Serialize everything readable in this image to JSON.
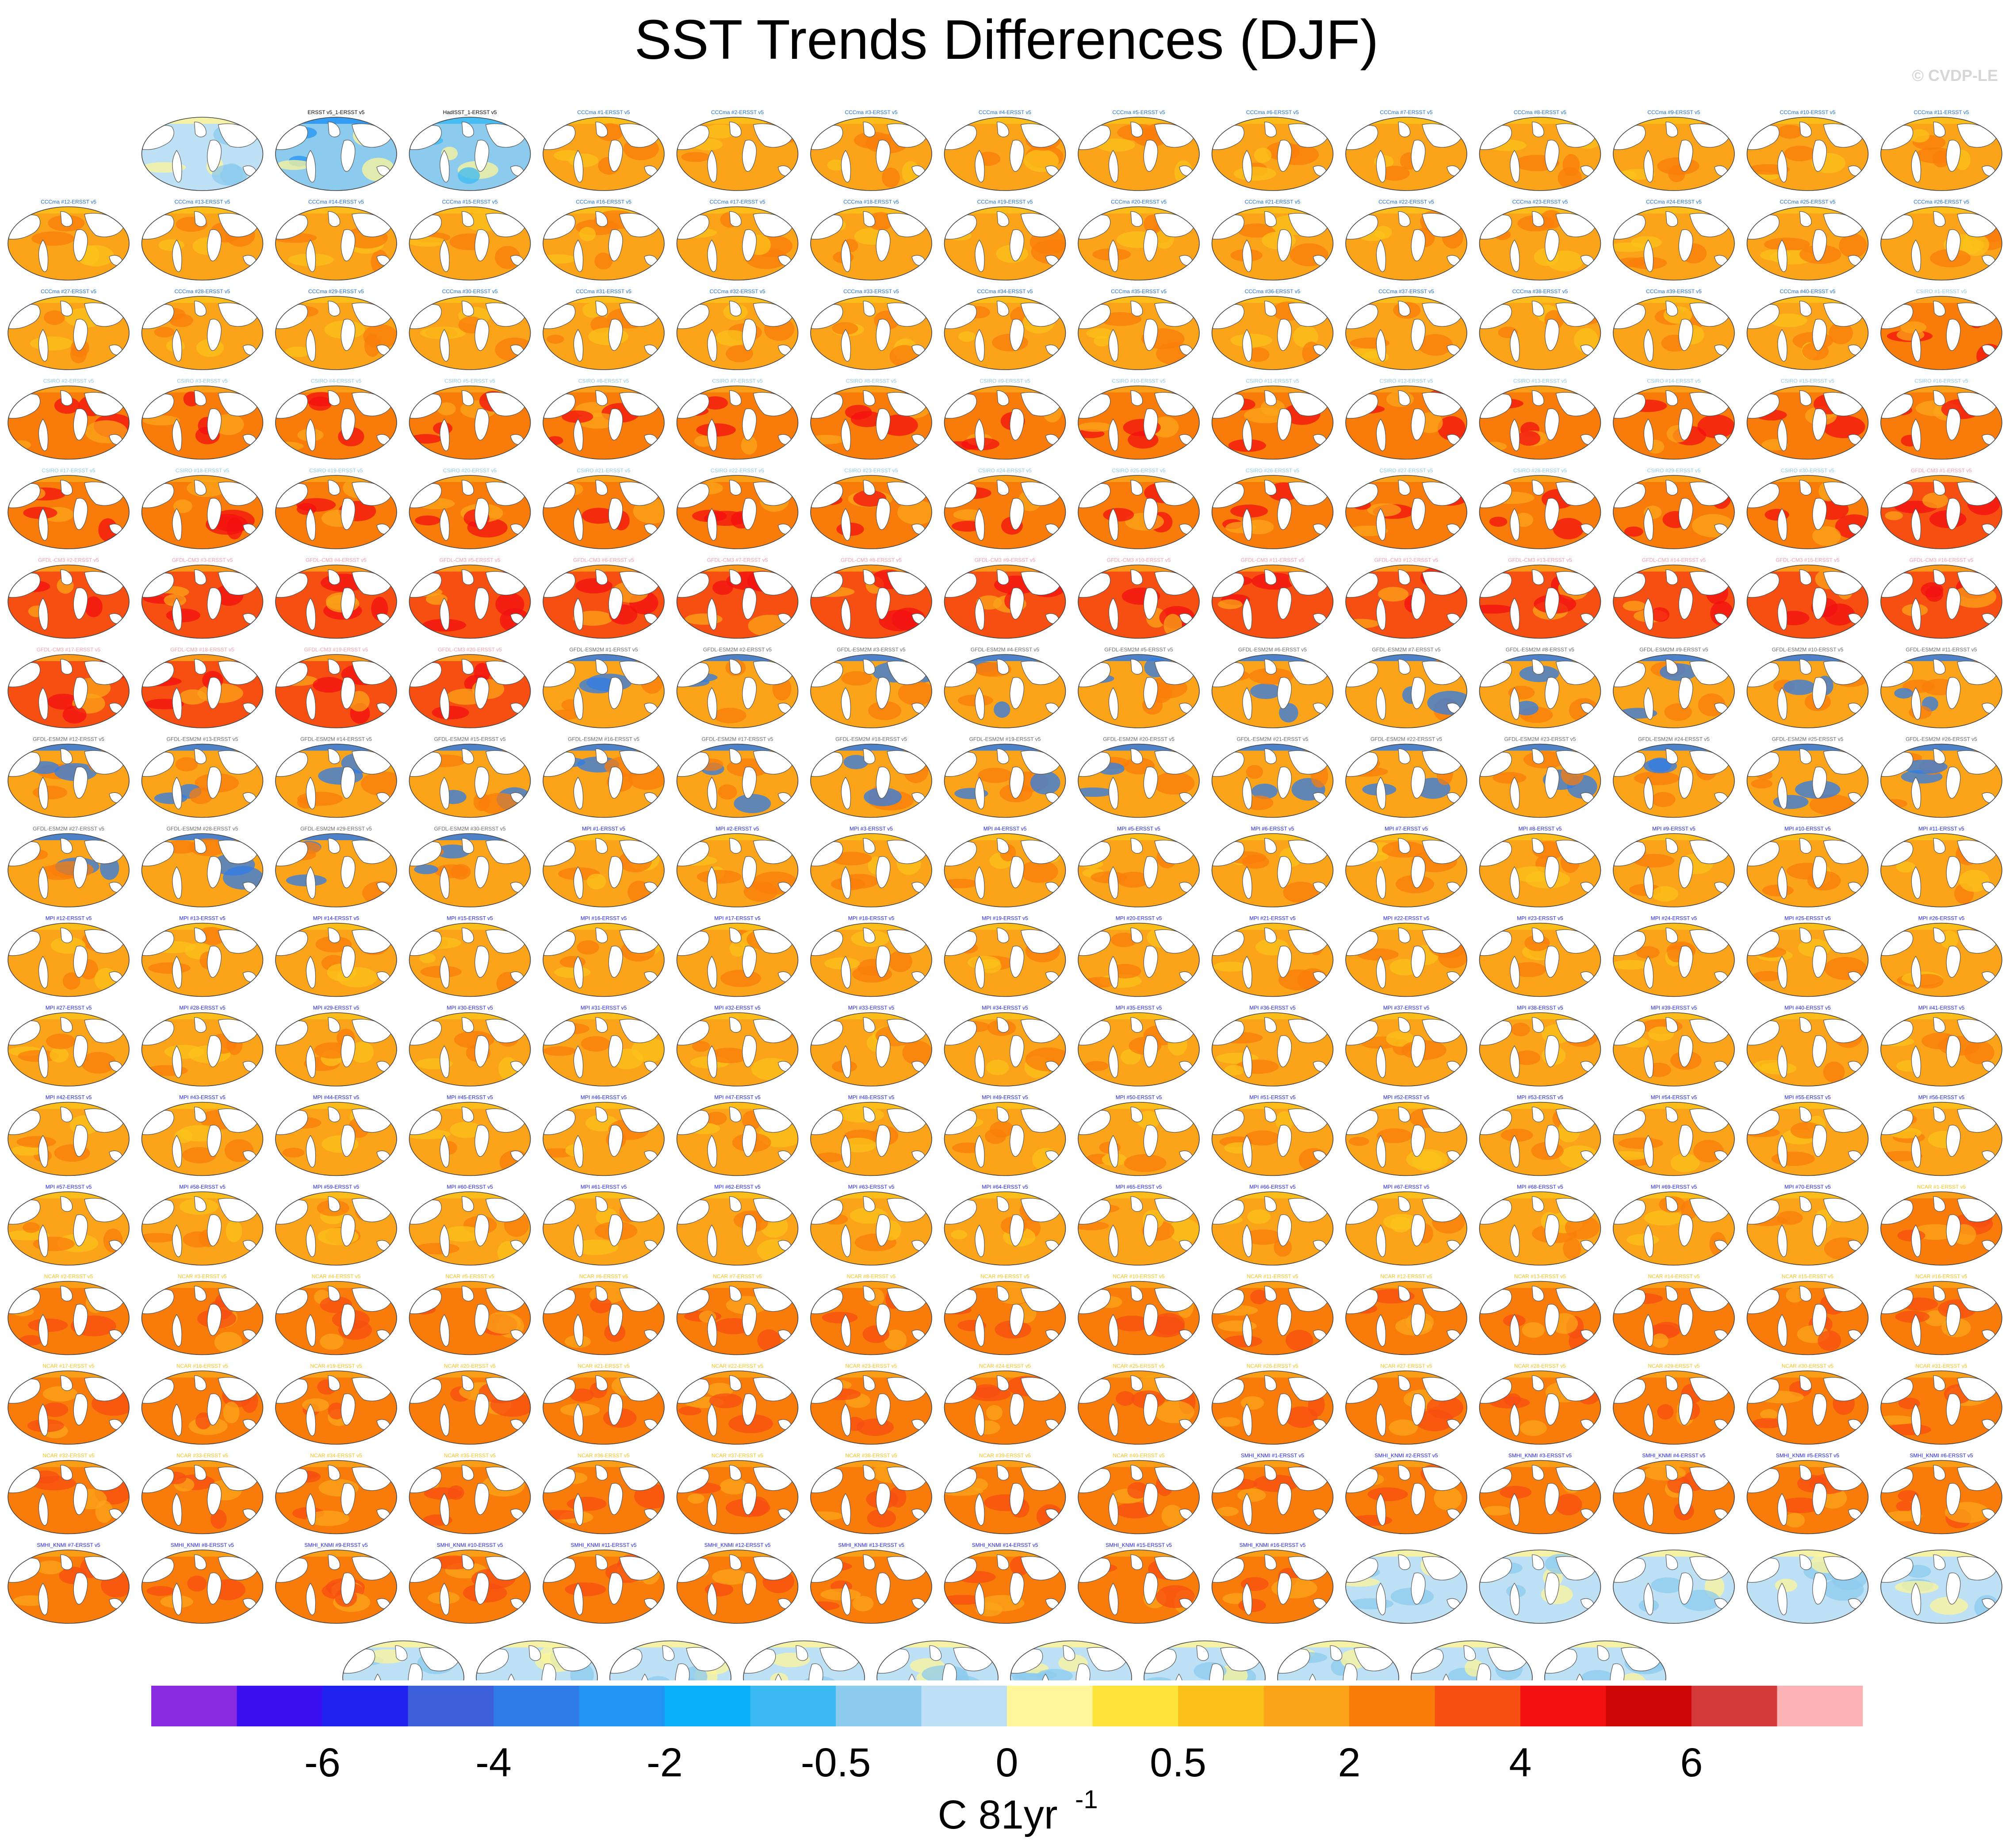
{
  "title": "SST Trends Differences (DJF)",
  "credit": "© CVDP-LE",
  "chart_data": {
    "type": "heatmap",
    "title": "SST Trends Differences (DJF)",
    "description_of_panels": [],
    "colorbar": {
      "colors": [
        "#8a2be2",
        "#3b10f0",
        "#1f22ee",
        "#3d5fdc",
        "#2f7ce8",
        "#2394f2",
        "#0aaffa",
        "#3bbaf2",
        "#8ccbee",
        "#bde0f5",
        "#fff59a",
        "#fde33a",
        "#fbc21b",
        "#fba41a",
        "#f97c0b",
        "#f74e12",
        "#f31010",
        "#cf0707",
        "#d43a3a",
        "#fbb2b4"
      ],
      "tick_labels": [
        "-6",
        "-4",
        "-2",
        "-0.5",
        "0",
        "0.5",
        "2",
        "4",
        "6"
      ],
      "tick_boundaries": [
        2,
        4,
        6,
        8,
        10,
        12,
        14,
        16,
        18
      ],
      "unit_label": "C 81yr",
      "unit_exponent": "-1"
    },
    "panel_labels": [
      "",
      "ERSST v5_1-ERSST v5",
      "HadISST_1-ERSST v5",
      "CCCma #1-ERSST v5",
      "CCCma #2-ERSST v5",
      "CCCma #3-ERSST v5",
      "CCCma #4-ERSST v5",
      "CCCma #5-ERSST v5",
      "CCCma #6-ERSST v5",
      "CCCma #7-ERSST v5",
      "CCCma #8-ERSST v5",
      "CCCma #9-ERSST v5",
      "CCCma #10-ERSST v5",
      "CCCma #11-ERSST v5",
      "CCCma #12-ERSST v5",
      "CCCma #13-ERSST v5",
      "CCCma #14-ERSST v5",
      "CCCma #15-ERSST v5",
      "CCCma #16-ERSST v5",
      "CCCma #17-ERSST v5",
      "CCCma #18-ERSST v5",
      "CCCma #19-ERSST v5",
      "CCCma #20-ERSST v5",
      "CCCma #21-ERSST v5",
      "CCCma #22-ERSST v5",
      "CCCma #23-ERSST v5",
      "CCCma #24-ERSST v5",
      "CCCma #25-ERSST v5",
      "CCCma #26-ERSST v5",
      "CCCma #27-ERSST v5",
      "CCCma #28-ERSST v5",
      "CCCma #29-ERSST v5",
      "CCCma #30-ERSST v5",
      "CCCma #31-ERSST v5",
      "CCCma #32-ERSST v5",
      "CCCma #33-ERSST v5",
      "CCCma #34-ERSST v5",
      "CCCma #35-ERSST v5",
      "CCCma #36-ERSST v5",
      "CCCma #37-ERSST v5",
      "CCCma #38-ERSST v5",
      "CCCma #39-ERSST v5",
      "CCCma #40-ERSST v5",
      "CSIRO #1-ERSST v5",
      "CSIRO #2-ERSST v5",
      "CSIRO #3-ERSST v5",
      "CSIRO #4-ERSST v5",
      "CSIRO #5-ERSST v5",
      "CSIRO #6-ERSST v5",
      "CSIRO #7-ERSST v5",
      "CSIRO #8-ERSST v5",
      "CSIRO #9-ERSST v5",
      "CSIRO #10-ERSST v5",
      "CSIRO #11-ERSST v5",
      "CSIRO #12-ERSST v5",
      "CSIRO #13-ERSST v5",
      "CSIRO #14-ERSST v5",
      "CSIRO #15-ERSST v5",
      "CSIRO #16-ERSST v5",
      "CSIRO #17-ERSST v5",
      "CSIRO #18-ERSST v5",
      "CSIRO #19-ERSST v5",
      "CSIRO #20-ERSST v5",
      "CSIRO #21-ERSST v5",
      "CSIRO #22-ERSST v5",
      "CSIRO #23-ERSST v5",
      "CSIRO #24-ERSST v5",
      "CSIRO #25-ERSST v5",
      "CSIRO #26-ERSST v5",
      "CSIRO #27-ERSST v5",
      "CSIRO #28-ERSST v5",
      "CSIRO #29-ERSST v5",
      "CSIRO #30-ERSST v5",
      "GFDL-CM3 #1-ERSST v5",
      "GFDL-CM3 #2-ERSST v5",
      "GFDL-CM3 #3-ERSST v5",
      "GFDL-CM3 #4-ERSST v5",
      "GFDL-CM3 #5-ERSST v5",
      "GFDL-CM3 #6-ERSST v5",
      "GFDL-CM3 #7-ERSST v5",
      "GFDL-CM3 #8-ERSST v5",
      "GFDL-CM3 #9-ERSST v5",
      "GFDL-CM3 #10-ERSST v5",
      "GFDL-CM3 #11-ERSST v5",
      "GFDL-CM3 #12-ERSST v5",
      "GFDL-CM3 #13-ERSST v5",
      "GFDL-CM3 #14-ERSST v5",
      "GFDL-CM3 #15-ERSST v5",
      "GFDL-CM3 #16-ERSST v5",
      "GFDL-CM3 #17-ERSST v5",
      "GFDL-CM3 #18-ERSST v5",
      "GFDL-CM3 #19-ERSST v5",
      "GFDL-CM3 #20-ERSST v5",
      "GFDL-ESM2M #1-ERSST v5",
      "GFDL-ESM2M #2-ERSST v5",
      "GFDL-ESM2M #3-ERSST v5",
      "GFDL-ESM2M #4-ERSST v5",
      "GFDL-ESM2M #5-ERSST v5",
      "GFDL-ESM2M #6-ERSST v5",
      "GFDL-ESM2M #7-ERSST v5",
      "GFDL-ESM2M #8-ERSST v5",
      "GFDL-ESM2M #9-ERSST v5",
      "GFDL-ESM2M #10-ERSST v5",
      "GFDL-ESM2M #11-ERSST v5",
      "GFDL-ESM2M #12-ERSST v5",
      "GFDL-ESM2M #13-ERSST v5",
      "GFDL-ESM2M #14-ERSST v5",
      "GFDL-ESM2M #15-ERSST v5",
      "GFDL-ESM2M #16-ERSST v5",
      "GFDL-ESM2M #17-ERSST v5",
      "GFDL-ESM2M #18-ERSST v5",
      "GFDL-ESM2M #19-ERSST v5",
      "GFDL-ESM2M #20-ERSST v5",
      "GFDL-ESM2M #21-ERSST v5",
      "GFDL-ESM2M #22-ERSST v5",
      "GFDL-ESM2M #23-ERSST v5",
      "GFDL-ESM2M #24-ERSST v5",
      "GFDL-ESM2M #25-ERSST v5",
      "GFDL-ESM2M #26-ERSST v5",
      "GFDL-ESM2M #27-ERSST v5",
      "GFDL-ESM2M #28-ERSST v5",
      "GFDL-ESM2M #29-ERSST v5",
      "GFDL-ESM2M #30-ERSST v5",
      "MPI #1-ERSST v5",
      "MPI #2-ERSST v5",
      "MPI #3-ERSST v5",
      "MPI #4-ERSST v5",
      "MPI #5-ERSST v5",
      "MPI #6-ERSST v5",
      "MPI #7-ERSST v5",
      "MPI #8-ERSST v5",
      "MPI #9-ERSST v5",
      "MPI #10-ERSST v5",
      "MPI #11-ERSST v5",
      "MPI #12-ERSST v5",
      "MPI #13-ERSST v5",
      "MPI #14-ERSST v5",
      "MPI #15-ERSST v5",
      "MPI #16-ERSST v5",
      "MPI #17-ERSST v5",
      "MPI #18-ERSST v5",
      "MPI #19-ERSST v5",
      "MPI #20-ERSST v5",
      "MPI #21-ERSST v5",
      "MPI #22-ERSST v5",
      "MPI #23-ERSST v5",
      "MPI #24-ERSST v5",
      "MPI #25-ERSST v5",
      "MPI #26-ERSST v5",
      "MPI #27-ERSST v5",
      "MPI #28-ERSST v5",
      "MPI #29-ERSST v5",
      "MPI #30-ERSST v5",
      "MPI #31-ERSST v5",
      "MPI #32-ERSST v5",
      "MPI #33-ERSST v5",
      "MPI #34-ERSST v5",
      "MPI #35-ERSST v5",
      "MPI #36-ERSST v5",
      "MPI #37-ERSST v5",
      "MPI #38-ERSST v5",
      "MPI #39-ERSST v5",
      "MPI #40-ERSST v5",
      "MPI #41-ERSST v5",
      "MPI #42-ERSST v5",
      "MPI #43-ERSST v5",
      "MPI #44-ERSST v5",
      "MPI #45-ERSST v5",
      "MPI #46-ERSST v5",
      "MPI #47-ERSST v5",
      "MPI #48-ERSST v5",
      "MPI #49-ERSST v5",
      "MPI #50-ERSST v5",
      "MPI #51-ERSST v5",
      "MPI #52-ERSST v5",
      "MPI #53-ERSST v5",
      "MPI #54-ERSST v5",
      "MPI #55-ERSST v5",
      "MPI #56-ERSST v5",
      "MPI #57-ERSST v5",
      "MPI #58-ERSST v5",
      "MPI #59-ERSST v5",
      "MPI #60-ERSST v5",
      "MPI #61-ERSST v5",
      "MPI #62-ERSST v5",
      "MPI #63-ERSST v5",
      "MPI #64-ERSST v5",
      "MPI #65-ERSST v5",
      "MPI #66-ERSST v5",
      "MPI #67-ERSST v5",
      "MPI #68-ERSST v5",
      "MPI #69-ERSST v5",
      "MPI #70-ERSST v5",
      "NCAR #1-ERSST v5",
      "NCAR #2-ERSST v5",
      "NCAR #3-ERSST v5",
      "NCAR #4-ERSST v5",
      "NCAR #5-ERSST v5",
      "NCAR #6-ERSST v5",
      "NCAR #7-ERSST v5",
      "NCAR #8-ERSST v5",
      "NCAR #9-ERSST v5",
      "NCAR #10-ERSST v5",
      "NCAR #11-ERSST v5",
      "NCAR #12-ERSST v5",
      "NCAR #13-ERSST v5",
      "NCAR #14-ERSST v5",
      "NCAR #15-ERSST v5",
      "NCAR #16-ERSST v5",
      "NCAR #17-ERSST v5",
      "NCAR #18-ERSST v5",
      "NCAR #19-ERSST v5",
      "NCAR #20-ERSST v5",
      "NCAR #21-ERSST v5",
      "NCAR #22-ERSST v5",
      "NCAR #23-ERSST v5",
      "NCAR #24-ERSST v5",
      "NCAR #25-ERSST v5",
      "NCAR #26-ERSST v5",
      "NCAR #27-ERSST v5",
      "NCAR #28-ERSST v5",
      "NCAR #29-ERSST v5",
      "NCAR #30-ERSST v5",
      "NCAR #31-ERSST v5",
      "NCAR #32-ERSST v5",
      "NCAR #33-ERSST v5",
      "NCAR #34-ERSST v5",
      "NCAR #35-ERSST v5",
      "NCAR #36-ERSST v5",
      "NCAR #37-ERSST v5",
      "NCAR #38-ERSST v5",
      "NCAR #39-ERSST v5",
      "NCAR #40-ERSST v5",
      "SMHI_KNMI #1-ERSST v5",
      "SMHI_KNMI #2-ERSST v5",
      "SMHI_KNMI #3-ERSST v5",
      "SMHI_KNMI #4-ERSST v5",
      "SMHI_KNMI #5-ERSST v5",
      "SMHI_KNMI #6-ERSST v5",
      "SMHI_KNMI #7-ERSST v5",
      "SMHI_KNMI #8-ERSST v5",
      "SMHI_KNMI #9-ERSST v5",
      "SMHI_KNMI #10-ERSST v5",
      "SMHI_KNMI #11-ERSST v5",
      "SMHI_KNMI #12-ERSST v5",
      "SMHI_KNMI #13-ERSST v5",
      "SMHI_KNMI #14-ERSST v5",
      "SMHI_KNMI #15-ERSST v5",
      "SMHI_KNMI #16-ERSST v5"
    ],
    "groups": [
      {
        "prefix": "",
        "color": "#bde0f5",
        "hot": "#8ccbee",
        "cold": "#fff59a",
        "label_color": "#000000"
      },
      {
        "prefix": "ERSST",
        "color": "#8ccbee",
        "hot": "#fff59a",
        "cold": "#2394f2",
        "label_color": "#000000"
      },
      {
        "prefix": "HadISST",
        "color": "#8ccbee",
        "hot": "#fff59a",
        "cold": "#3bbaf2",
        "label_color": "#000000"
      },
      {
        "prefix": "CCCma",
        "color": "#fba41a",
        "hot": "#f97c0b",
        "cold": "#fbc21b",
        "label_color": "#1f6fd6"
      },
      {
        "prefix": "CSIRO",
        "color": "#f97c0b",
        "hot": "#f31010",
        "cold": "#fba41a",
        "label_color": "#8ccbee"
      },
      {
        "prefix": "GFDL-CM3",
        "color": "#f74e12",
        "hot": "#f31010",
        "cold": "#fba41a",
        "label_color": "#f4a0b0"
      },
      {
        "prefix": "GFDL-ESM2M",
        "color": "#fba41a",
        "hot": "#f97c0b",
        "cold": "#2f7ce8",
        "label_color": "#6b6b6b"
      },
      {
        "prefix": "MPI",
        "color": "#fba41a",
        "hot": "#f97c0b",
        "cold": "#fbc21b",
        "label_color": "#1f22ee"
      },
      {
        "prefix": "NCAR",
        "color": "#f97c0b",
        "hot": "#f74e12",
        "cold": "#fba41a",
        "label_color": "#fbc21b"
      },
      {
        "prefix": "SMHI_KNMI",
        "color": "#f97c0b",
        "hot": "#f74e12",
        "cold": "#fba41a",
        "label_color": "#1f22ee"
      }
    ]
  }
}
